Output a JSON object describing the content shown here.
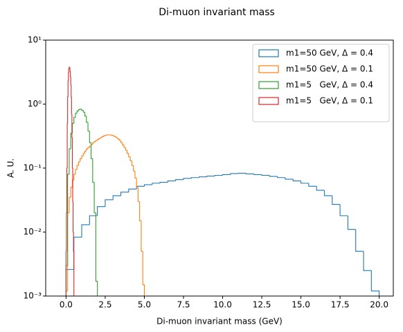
{
  "chart_data": {
    "type": "histogram",
    "title": "Di-muon invariant mass",
    "x_label": "Di-muon invariant mass (GeV)",
    "y_label": "A. U.",
    "log_y": true,
    "legend": "upper right",
    "xlim": [
      -1.3,
      20.9
    ],
    "ylim": [
      0.001,
      10
    ],
    "xticks": [
      {
        "value": 0,
        "label": "0.0"
      },
      2.5,
      {
        "value": 5,
        "label": "5.0"
      },
      7.5,
      {
        "value": 10,
        "label": "10.0"
      },
      12.5,
      {
        "value": 15,
        "label": "15.0"
      },
      17.5,
      {
        "value": 20,
        "label": "20.0"
      }
    ],
    "yticks": [
      {
        "value": 0.001,
        "label": "10⁻³"
      },
      {
        "value": 0.01,
        "label": "10⁻²"
      },
      {
        "value": 0.1,
        "label": "10⁻¹"
      },
      {
        "value": 1,
        "label": "10⁰"
      },
      {
        "value": 10,
        "label": "10¹"
      }
    ],
    "series": [
      {
        "name": "m1=50 GeV, Δ = 0.4",
        "color": "#1f77b4",
        "bins": [
          0,
          0.5,
          1,
          1.5,
          2,
          2.5,
          3,
          3.5,
          4,
          4.5,
          5,
          5.5,
          6,
          6.5,
          7,
          7.5,
          8,
          8.5,
          9,
          9.5,
          10,
          10.5,
          11,
          11.5,
          12,
          12.5,
          13,
          13.5,
          14,
          14.5,
          15,
          15.5,
          16,
          16.5,
          17,
          17.5,
          18,
          18.5,
          19,
          19.5,
          20
        ],
        "values": [
          0.0026,
          0.0083,
          0.013,
          0.018,
          0.025,
          0.032,
          0.037,
          0.042,
          0.047,
          0.052,
          0.055,
          0.058,
          0.06,
          0.063,
          0.066,
          0.069,
          0.071,
          0.073,
          0.075,
          0.077,
          0.079,
          0.082,
          0.083,
          0.081,
          0.079,
          0.077,
          0.074,
          0.071,
          0.067,
          0.063,
          0.058,
          0.052,
          0.045,
          0.037,
          0.027,
          0.018,
          0.011,
          0.005,
          0.0025,
          0.0012
        ]
      },
      {
        "name": "m1=50 GeV, Δ = 0.1",
        "color": "#ff7f0e",
        "bins": [
          0,
          0.1,
          0.2,
          0.3,
          0.4,
          0.5,
          0.6,
          0.7,
          0.8,
          0.9,
          1,
          1.1,
          1.2,
          1.3,
          1.4,
          1.5,
          1.6,
          1.7,
          1.8,
          1.9,
          2,
          2.1,
          2.2,
          2.3,
          2.4,
          2.5,
          2.6,
          2.7,
          2.8,
          2.9,
          3,
          3.1,
          3.2,
          3.3,
          3.4,
          3.5,
          3.6,
          3.7,
          3.8,
          3.9,
          4,
          4.1,
          4.2,
          4.3,
          4.4,
          4.5,
          4.6,
          4.7,
          4.8,
          4.9,
          5
        ],
        "values": [
          0.0012,
          0.02,
          0.035,
          0.05,
          0.065,
          0.08,
          0.095,
          0.11,
          0.125,
          0.14,
          0.155,
          0.17,
          0.185,
          0.2,
          0.21,
          0.22,
          0.235,
          0.25,
          0.26,
          0.27,
          0.28,
          0.29,
          0.3,
          0.31,
          0.32,
          0.325,
          0.33,
          0.33,
          0.33,
          0.325,
          0.32,
          0.31,
          0.3,
          0.285,
          0.27,
          0.25,
          0.23,
          0.21,
          0.19,
          0.17,
          0.15,
          0.13,
          0.11,
          0.09,
          0.07,
          0.05,
          0.03,
          0.015,
          0.005,
          0.0015
        ]
      },
      {
        "name": "m1=5   GeV, Δ = 0.4",
        "color": "#2ca02c",
        "bins": [
          0,
          0.1,
          0.2,
          0.3,
          0.4,
          0.5,
          0.6,
          0.7,
          0.8,
          0.9,
          1,
          1.1,
          1.2,
          1.3,
          1.4,
          1.5,
          1.6,
          1.7,
          1.8,
          1.9,
          2
        ],
        "values": [
          0.003,
          0.08,
          0.2,
          0.35,
          0.5,
          0.62,
          0.72,
          0.78,
          0.82,
          0.83,
          0.8,
          0.75,
          0.65,
          0.52,
          0.38,
          0.25,
          0.14,
          0.06,
          0.02,
          0.0017
        ]
      },
      {
        "name": "m1=5   GeV, Δ = 0.1",
        "color": "#d62728",
        "bins": [
          0,
          0.025,
          0.05,
          0.075,
          0.1,
          0.125,
          0.15,
          0.175,
          0.2,
          0.225,
          0.25,
          0.275,
          0.3,
          0.325,
          0.35,
          0.375,
          0.4,
          0.425,
          0.45,
          0.475,
          0.5
        ],
        "values": [
          0.005,
          0.02,
          0.1,
          0.5,
          1.3,
          2.3,
          3.1,
          3.6,
          3.8,
          3.7,
          3.3,
          2.7,
          2.0,
          1.3,
          0.7,
          0.3,
          0.1,
          0.03,
          0.01,
          0.005
        ]
      }
    ]
  }
}
